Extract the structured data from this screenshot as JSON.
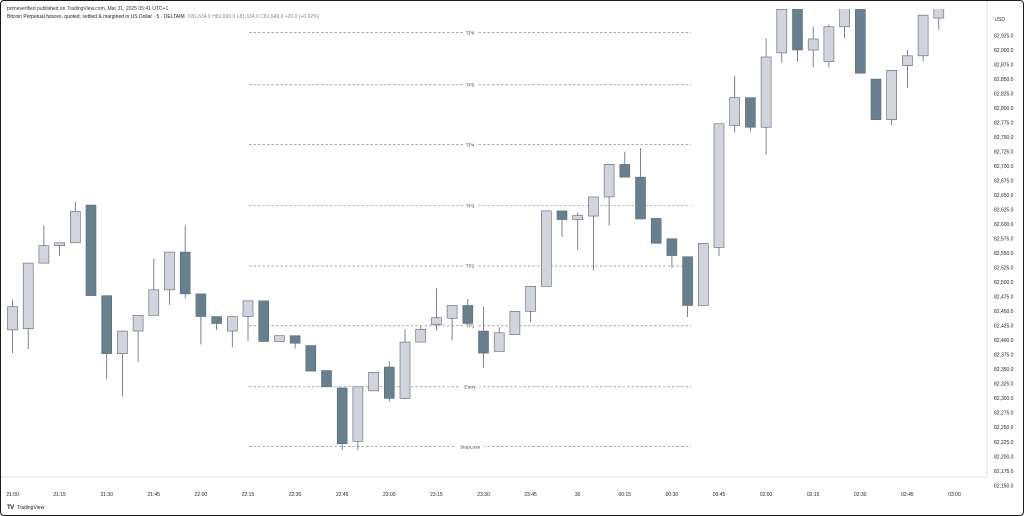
{
  "header": {
    "published": "primeverified published on TradingView.com, Mar 31, 2025 05:41 UTC+1",
    "symbol": "Bitcoin Perpetual futures, quoted, settled & margined in US Dollar · 5 · DELTAIM",
    "ohlc": "O81,634.0 H81,696.0 L81,634.0 C81,649.0 +20.0 (+0.02%)"
  },
  "footer": {
    "brand": "TradingView"
  },
  "chart_data": {
    "type": "candlestick",
    "y_axis_unit": "USD",
    "ylim": [
      82150,
      82950
    ],
    "y_ticks": [
      82150,
      82175,
      82200,
      82225,
      82250,
      82275,
      82300,
      82325,
      82350,
      82375,
      82400,
      82425,
      82450,
      82475,
      82500,
      82525,
      82550,
      82575,
      82600,
      82625,
      82650,
      82675,
      82700,
      82725,
      82750,
      82775,
      82800,
      82825,
      82850,
      82875,
      82900,
      82925
    ],
    "x_ticks": [
      {
        "label": "21:00",
        "i": 0
      },
      {
        "label": "21:15",
        "i": 3
      },
      {
        "label": "21:30",
        "i": 6
      },
      {
        "label": "21:45",
        "i": 9
      },
      {
        "label": "22:00",
        "i": 12
      },
      {
        "label": "22:15",
        "i": 15
      },
      {
        "label": "22:30",
        "i": 18
      },
      {
        "label": "22:45",
        "i": 21
      },
      {
        "label": "23:00",
        "i": 24
      },
      {
        "label": "23:15",
        "i": 27
      },
      {
        "label": "23:30",
        "i": 30
      },
      {
        "label": "23:45",
        "i": 33
      },
      {
        "label": "30",
        "i": 36
      },
      {
        "label": "00:15",
        "i": 39
      },
      {
        "label": "00:30",
        "i": 42
      },
      {
        "label": "00:45",
        "i": 45
      },
      {
        "label": "02:00",
        "i": 48
      },
      {
        "label": "02:15",
        "i": 51
      },
      {
        "label": "02:30",
        "i": 54
      },
      {
        "label": "02:45",
        "i": 57
      },
      {
        "label": "03:00",
        "i": 60
      }
    ],
    "levels": [
      {
        "label": "TP6",
        "price": 82930
      },
      {
        "label": "TP5",
        "price": 82840
      },
      {
        "label": "TP4",
        "price": 82737
      },
      {
        "label": "TP3",
        "price": 82632
      },
      {
        "label": "TP2",
        "price": 82528
      },
      {
        "label": "TP1",
        "price": 82425
      },
      {
        "label": "Entry",
        "price": 82320
      },
      {
        "label": "StopLoss",
        "price": 82217
      }
    ],
    "colors": {
      "up": "#d1d4dc",
      "down": "#687f8d",
      "up_border": "#5d6470",
      "down_border": "#5a6f7c",
      "wick": "#5d6470"
    },
    "candles": [
      [
        82418,
        82458,
        82378,
        82470
      ],
      [
        82420,
        82533,
        82385,
        82533
      ],
      [
        82533,
        82563,
        82533,
        82598
      ],
      [
        82563,
        82568,
        82545,
        82568
      ],
      [
        82568,
        82622,
        82568,
        82639
      ],
      [
        82633,
        82477,
        82477,
        82633
      ],
      [
        82477,
        82377,
        82333,
        82477
      ],
      [
        82377,
        82416,
        82303,
        82416
      ],
      [
        82416,
        82443,
        82363,
        82443
      ],
      [
        82443,
        82487,
        82443,
        82541
      ],
      [
        82487,
        82552,
        82461,
        82552
      ],
      [
        82552,
        82480,
        82473,
        82598
      ],
      [
        82480,
        82441,
        82393,
        82480
      ],
      [
        82441,
        82429,
        82418,
        82441
      ],
      [
        82416,
        82441,
        82388,
        82441
      ],
      [
        82441,
        82468,
        82399,
        82468
      ],
      [
        82468,
        82398,
        82398,
        82468
      ],
      [
        82398,
        82408,
        82398,
        82408
      ],
      [
        82408,
        82395,
        82386,
        82408
      ],
      [
        82391,
        82347,
        82347,
        82391
      ],
      [
        82348,
        82320,
        82320,
        82348
      ],
      [
        82318,
        82222,
        82211,
        82318
      ],
      [
        82226,
        82320,
        82211,
        82320
      ],
      [
        82313,
        82345,
        82313,
        82345
      ],
      [
        82354,
        82300,
        82295,
        82364
      ],
      [
        82300,
        82397,
        82299,
        82419
      ],
      [
        82397,
        82419,
        82397,
        82424
      ],
      [
        82427,
        82439,
        82417,
        82490
      ],
      [
        82438,
        82460,
        82400,
        82460
      ],
      [
        82460,
        82429,
        82429,
        82471
      ],
      [
        82416,
        82378,
        82353,
        82458
      ],
      [
        82381,
        82413,
        82381,
        82423
      ],
      [
        82410,
        82450,
        82410,
        82450
      ],
      [
        82450,
        82493,
        82431,
        82493
      ],
      [
        82493,
        82623,
        82493,
        82623
      ],
      [
        82623,
        82608,
        82578,
        82623
      ],
      [
        82608,
        82615,
        82556,
        82620
      ],
      [
        82614,
        82647,
        82520,
        82647
      ],
      [
        82647,
        82703,
        82598,
        82703
      ],
      [
        82703,
        82681,
        82681,
        82725
      ],
      [
        82681,
        82609,
        82609,
        82731
      ],
      [
        82610,
        82567,
        82567,
        82610
      ],
      [
        82575,
        82546,
        82525,
        82575
      ],
      [
        82544,
        82460,
        82440,
        82544
      ],
      [
        82460,
        82567,
        82460,
        82567
      ],
      [
        82560,
        82773,
        82545,
        82773
      ],
      [
        82770,
        82818,
        82758,
        82855
      ],
      [
        82818,
        82767,
        82760,
        82818
      ],
      [
        82767,
        82888,
        82720,
        82920
      ],
      [
        82895,
        82970,
        82878,
        82970
      ],
      [
        82970,
        82900,
        82880,
        82970
      ],
      [
        82900,
        82919,
        82870,
        82940
      ],
      [
        82880,
        82940,
        82870,
        82944
      ],
      [
        82940,
        82975,
        82920,
        82975
      ],
      [
        82975,
        82860,
        82860,
        82975
      ],
      [
        82850,
        82780,
        82780,
        82850
      ],
      [
        82780,
        82865,
        82770,
        82865
      ],
      [
        82873,
        82890,
        82835,
        82900
      ],
      [
        82890,
        82960,
        82880,
        82960
      ],
      [
        82955,
        82980,
        82935,
        82980
      ]
    ]
  }
}
